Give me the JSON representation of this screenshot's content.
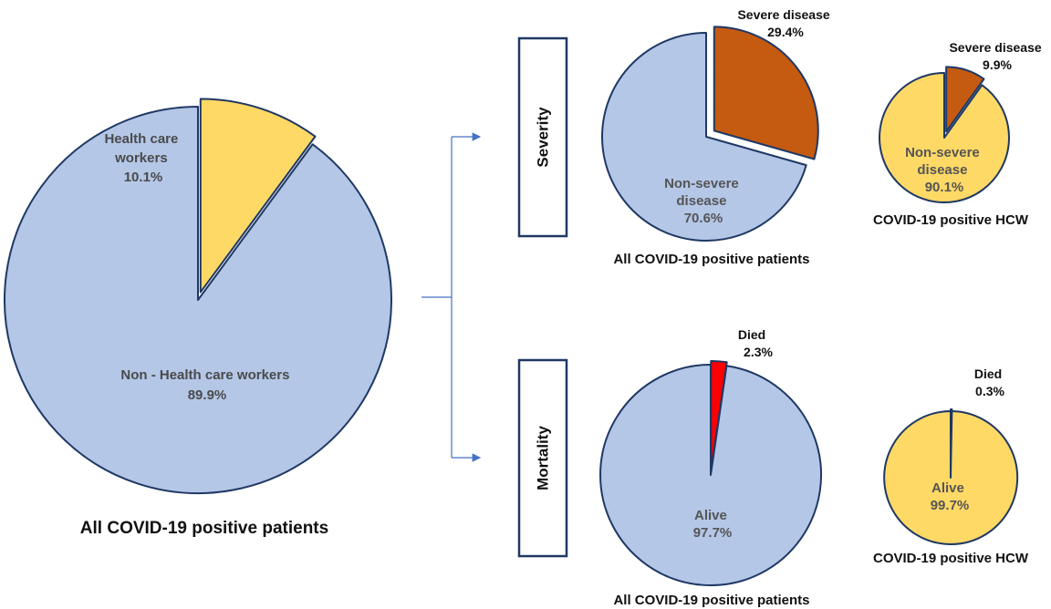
{
  "colors": {
    "blue": "#b4c7e7",
    "yellow": "#ffd966",
    "orange": "#c55a11",
    "red": "#ff0000",
    "outline": "#1f3864",
    "connector": "#4472c4"
  },
  "row_labels": {
    "severity": "Severity",
    "mortality": "Mortality"
  },
  "chart_data": [
    {
      "id": "main",
      "type": "pie",
      "title": "All COVID-19 positive patients",
      "slices": [
        {
          "label_lines": [
            "Health care",
            "workers"
          ],
          "value": 10.1,
          "value_text": "10.1%",
          "color": "#ffd966",
          "exploded": true
        },
        {
          "label_lines": [
            "Non - Health care workers"
          ],
          "value": 89.9,
          "value_text": "89.9%",
          "color": "#b4c7e7",
          "exploded": false
        }
      ]
    },
    {
      "id": "severity-all",
      "type": "pie",
      "title": "All COVID-19 positive patients",
      "slices": [
        {
          "label_lines": [
            "Severe disease"
          ],
          "value": 29.4,
          "value_text": "29.4%",
          "color": "#c55a11",
          "exploded": true
        },
        {
          "label_lines": [
            "Non-severe",
            "disease"
          ],
          "value": 70.6,
          "value_text": "70.6%",
          "color": "#b4c7e7",
          "exploded": false
        }
      ]
    },
    {
      "id": "severity-hcw",
      "type": "pie",
      "title": "COVID-19 positive HCW",
      "slices": [
        {
          "label_lines": [
            "Severe disease"
          ],
          "value": 9.9,
          "value_text": "9.9%",
          "color": "#c55a11",
          "exploded": true
        },
        {
          "label_lines": [
            "Non-severe",
            "disease"
          ],
          "value": 90.1,
          "value_text": "90.1%",
          "color": "#ffd966",
          "exploded": false
        }
      ]
    },
    {
      "id": "mortality-all",
      "type": "pie",
      "title": "All COVID-19 positive patients",
      "slices": [
        {
          "label_lines": [
            "Died"
          ],
          "value": 2.3,
          "value_text": "2.3%",
          "color": "#ff0000",
          "exploded": true
        },
        {
          "label_lines": [
            "Alive"
          ],
          "value": 97.7,
          "value_text": "97.7%",
          "color": "#b4c7e7",
          "exploded": false
        }
      ]
    },
    {
      "id": "mortality-hcw",
      "type": "pie",
      "title": "COVID-19 positive HCW",
      "slices": [
        {
          "label_lines": [
            "Died"
          ],
          "value": 0.3,
          "value_text": "0.3%",
          "color": "#ff0000",
          "exploded": true
        },
        {
          "label_lines": [
            "Alive"
          ],
          "value": 99.7,
          "value_text": "99.7%",
          "color": "#ffd966",
          "exploded": false
        }
      ]
    }
  ]
}
